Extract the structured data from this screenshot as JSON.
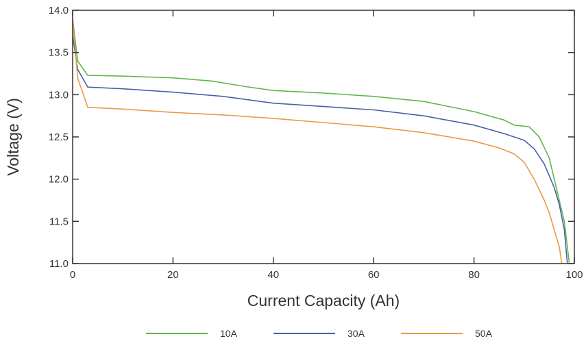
{
  "chart_data": {
    "type": "line",
    "title": "",
    "xlabel": "Current Capacity (Ah)",
    "ylabel": "Voltage (V)",
    "xlim": [
      0,
      100
    ],
    "ylim": [
      11.0,
      14.0
    ],
    "xticks": [
      "0",
      "20",
      "40",
      "60",
      "80",
      "100"
    ],
    "yticks": [
      "11.0",
      "11.5",
      "12.0",
      "12.5",
      "13.0",
      "13.5",
      "14.0"
    ],
    "grid": false,
    "legend_position": "bottom",
    "series": [
      {
        "name": "10A",
        "color": "#5db84a",
        "x": [
          0,
          1,
          3,
          10,
          20,
          28,
          34,
          40,
          50,
          60,
          70,
          80,
          86,
          88,
          91,
          93,
          95,
          96,
          97,
          98,
          99
        ],
        "y": [
          13.9,
          13.4,
          13.23,
          13.22,
          13.2,
          13.16,
          13.1,
          13.05,
          13.02,
          12.98,
          12.92,
          12.8,
          12.7,
          12.64,
          12.62,
          12.5,
          12.25,
          12.0,
          11.75,
          11.5,
          11.0
        ]
      },
      {
        "name": "30A",
        "color": "#4a5fa8",
        "x": [
          0,
          1,
          3,
          10,
          20,
          30,
          40,
          50,
          60,
          70,
          80,
          86,
          90,
          92,
          94,
          96,
          97,
          98,
          98.6
        ],
        "y": [
          13.7,
          13.3,
          13.09,
          13.07,
          13.03,
          12.98,
          12.9,
          12.86,
          12.82,
          12.75,
          12.64,
          12.54,
          12.46,
          12.36,
          12.18,
          11.9,
          11.7,
          11.4,
          11.0
        ]
      },
      {
        "name": "50A",
        "color": "#e89a45",
        "x": [
          0,
          1,
          3,
          10,
          20,
          30,
          40,
          50,
          60,
          70,
          80,
          85,
          88,
          90,
          92,
          94,
          95,
          96,
          97,
          97.5
        ],
        "y": [
          13.9,
          13.2,
          12.85,
          12.83,
          12.79,
          12.76,
          12.72,
          12.67,
          12.62,
          12.55,
          12.45,
          12.37,
          12.3,
          12.2,
          12.0,
          11.75,
          11.6,
          11.4,
          11.2,
          11.0
        ]
      }
    ]
  }
}
